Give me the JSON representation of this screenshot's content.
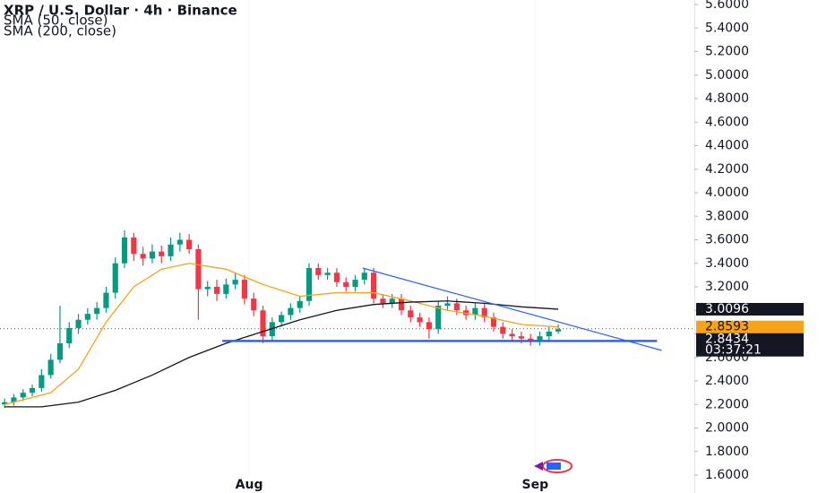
{
  "chart_data": {
    "type": "candlestick",
    "title": "XRP / U.S. Dollar · 4h · Binance",
    "x": [
      0,
      1,
      2,
      3,
      4,
      5,
      6,
      7,
      8,
      9,
      10,
      11,
      12,
      13,
      14,
      15,
      16,
      17,
      18,
      19,
      20,
      21,
      22,
      23,
      24,
      25,
      26,
      27,
      28,
      29,
      30,
      31,
      32,
      33,
      34,
      35,
      36,
      37,
      38,
      39,
      40,
      41,
      42,
      43,
      44,
      45,
      46,
      47,
      48,
      49,
      50,
      51,
      52,
      53,
      54,
      55,
      56,
      57,
      58,
      59,
      60
    ],
    "open": [
      2.2,
      2.22,
      2.26,
      2.3,
      2.34,
      2.45,
      2.58,
      2.72,
      2.85,
      2.92,
      2.97,
      3.02,
      3.15,
      3.4,
      3.62,
      3.48,
      3.44,
      3.5,
      3.46,
      3.56,
      3.6,
      3.52,
      3.18,
      3.2,
      3.14,
      3.22,
      3.26,
      3.1,
      3.0,
      2.78,
      2.9,
      2.96,
      3.02,
      3.08,
      3.36,
      3.3,
      3.32,
      3.24,
      3.2,
      3.26,
      3.32,
      3.1,
      3.06,
      3.1,
      3.0,
      2.94,
      2.9,
      2.84,
      3.04,
      3.06,
      3.0,
      2.96,
      3.02,
      2.94,
      2.86,
      2.8,
      2.78,
      2.76,
      2.74,
      2.78,
      2.82
    ],
    "high": [
      2.25,
      2.29,
      2.33,
      2.37,
      2.5,
      2.63,
      3.04,
      2.9,
      2.97,
      3.02,
      3.07,
      3.2,
      3.45,
      3.68,
      3.66,
      3.54,
      3.56,
      3.55,
      3.62,
      3.66,
      3.65,
      3.56,
      3.25,
      3.26,
      3.27,
      3.32,
      3.3,
      3.15,
      3.04,
      2.94,
      2.99,
      3.06,
      3.12,
      3.4,
      3.4,
      3.36,
      3.36,
      3.28,
      3.3,
      3.36,
      3.36,
      3.14,
      3.14,
      3.14,
      3.04,
      2.98,
      2.94,
      3.08,
      3.12,
      3.1,
      3.04,
      3.06,
      3.06,
      2.98,
      2.9,
      2.84,
      2.82,
      2.8,
      2.82,
      2.86,
      2.88
    ],
    "low": [
      2.17,
      2.19,
      2.23,
      2.27,
      2.31,
      2.42,
      2.55,
      2.68,
      2.8,
      2.88,
      2.92,
      2.98,
      3.1,
      3.36,
      3.42,
      3.38,
      3.4,
      3.4,
      3.42,
      3.5,
      3.48,
      2.92,
      3.12,
      3.08,
      3.1,
      3.18,
      3.05,
      2.95,
      2.72,
      2.74,
      2.86,
      2.92,
      2.98,
      3.04,
      3.26,
      3.26,
      3.2,
      3.16,
      3.16,
      3.22,
      3.06,
      3.02,
      3.02,
      2.96,
      2.9,
      2.86,
      2.76,
      2.8,
      3.0,
      2.96,
      2.92,
      2.92,
      2.9,
      2.82,
      2.76,
      2.74,
      2.72,
      2.7,
      2.7,
      2.74,
      2.8
    ],
    "close": [
      2.22,
      2.26,
      2.3,
      2.34,
      2.45,
      2.58,
      2.72,
      2.85,
      2.92,
      2.97,
      3.02,
      3.15,
      3.4,
      3.62,
      3.48,
      3.44,
      3.5,
      3.46,
      3.56,
      3.6,
      3.52,
      3.18,
      3.2,
      3.14,
      3.22,
      3.26,
      3.1,
      3.0,
      2.78,
      2.9,
      2.96,
      3.02,
      3.08,
      3.36,
      3.3,
      3.32,
      3.24,
      3.2,
      3.26,
      3.32,
      3.1,
      3.06,
      3.1,
      3.0,
      2.94,
      2.9,
      2.84,
      3.04,
      3.06,
      3.0,
      2.96,
      3.02,
      2.94,
      2.86,
      2.8,
      2.78,
      2.76,
      2.74,
      2.78,
      2.82,
      2.84
    ],
    "up_color": "#089981",
    "down_color": "#f23645",
    "series": [
      {
        "name": "SMA (50, close)",
        "color": "#f7a21b",
        "x": [
          0,
          5,
          8,
          11,
          14,
          17,
          20,
          24,
          28,
          32,
          36,
          40,
          44,
          48,
          52,
          56,
          60
        ],
        "values": [
          2.2,
          2.3,
          2.5,
          2.9,
          3.2,
          3.35,
          3.4,
          3.35,
          3.22,
          3.12,
          3.15,
          3.15,
          3.08,
          3.0,
          2.95,
          2.88,
          2.86
        ],
        "last": 2.8593
      },
      {
        "name": "SMA (200, close)",
        "color": "#131722",
        "x": [
          0,
          4,
          8,
          12,
          16,
          20,
          24,
          28,
          32,
          36,
          40,
          44,
          48,
          52,
          56,
          60
        ],
        "values": [
          2.18,
          2.18,
          2.22,
          2.32,
          2.45,
          2.6,
          2.72,
          2.82,
          2.92,
          3.0,
          3.05,
          3.07,
          3.08,
          3.06,
          3.03,
          3.01
        ],
        "last": 3.0096
      }
    ],
    "drawings": [
      {
        "color": "#2962ff",
        "x": [
          23.6,
          70.7
        ],
        "values": [
          2.74,
          2.74
        ]
      },
      {
        "color": "#2962ff",
        "x": [
          38.8,
          71.2
        ],
        "values": [
          3.36,
          2.66
        ]
      }
    ],
    "last_price": 2.8434,
    "countdown": "03:37:21",
    "xlim": [
      -0.5,
      74.75
    ],
    "xticks": [
      {
        "value": 26.5,
        "label": "Aug"
      },
      {
        "value": 57.5,
        "label": "Sep"
      }
    ],
    "ylim": [
      1.6,
      5.6
    ],
    "yticks": [
      {
        "value": 1.6,
        "label": "1.6000"
      },
      {
        "value": 1.8,
        "label": "1.8000"
      },
      {
        "value": 2.0,
        "label": "2.0000"
      },
      {
        "value": 2.2,
        "label": "2.2000"
      },
      {
        "value": 2.4,
        "label": "2.4000"
      },
      {
        "value": 2.6,
        "label": "2.6000"
      },
      {
        "value": 2.8,
        "label": "2.8000"
      },
      {
        "value": 3.0,
        "label": "3.0000"
      },
      {
        "value": 3.2,
        "label": "3.2000"
      },
      {
        "value": 3.4,
        "label": "3.4000"
      },
      {
        "value": 3.6,
        "label": "3.6000"
      },
      {
        "value": 3.8,
        "label": "3.8000"
      },
      {
        "value": 4.0,
        "label": "4.0000"
      },
      {
        "value": 4.2,
        "label": "4.2000"
      },
      {
        "value": 4.4,
        "label": "4.4000"
      },
      {
        "value": 4.6,
        "label": "4.6000"
      },
      {
        "value": 4.8,
        "label": "4.8000"
      },
      {
        "value": 5.0,
        "label": "5.0000"
      },
      {
        "value": 5.2,
        "label": "5.2000"
      },
      {
        "value": 5.4,
        "label": "5.4000"
      },
      {
        "value": 5.6,
        "label": "5.6000"
      }
    ]
  }
}
